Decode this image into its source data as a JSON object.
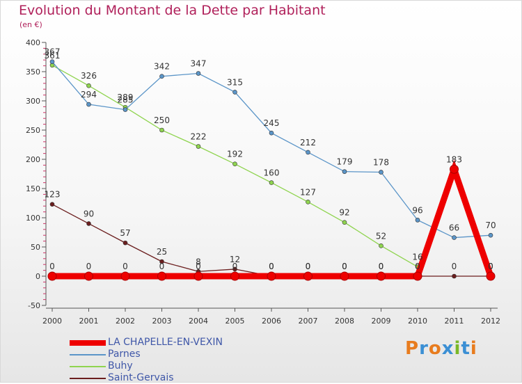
{
  "header": {
    "title": "Evolution du Montant de la Dette par Habitant",
    "subtitle": "(en €)"
  },
  "brand": {
    "text": "Proxiti",
    "colors": [
      "#e87c1e",
      "#3b8fd4",
      "#e87c1e",
      "#3b8fd4",
      "#7ab828",
      "#3b8fd4",
      "#e87c1e"
    ]
  },
  "chart_data": {
    "type": "line",
    "x": [
      2000,
      2001,
      2002,
      2003,
      2004,
      2005,
      2006,
      2007,
      2008,
      2009,
      2010,
      2011,
      2012
    ],
    "ylim": [
      -50,
      400
    ],
    "yticks": [
      -50,
      0,
      50,
      100,
      150,
      200,
      250,
      300,
      350,
      400
    ],
    "grid": false,
    "legend_position": "bottom-left",
    "series": [
      {
        "name": "LA CHAPELLE-EN-VEXIN",
        "color": "#ee0000",
        "values": [
          0,
          0,
          0,
          0,
          0,
          0,
          0,
          0,
          0,
          0,
          0,
          183,
          0
        ],
        "labels": [
          "0",
          "0",
          "0",
          "0",
          "0",
          "0",
          "0",
          "0",
          "0",
          "0",
          "",
          "183",
          "0"
        ]
      },
      {
        "name": "Parnes",
        "color": "#5b95c8",
        "values": [
          367,
          294,
          285,
          342,
          347,
          315,
          245,
          212,
          179,
          178,
          96,
          66,
          70
        ],
        "labels": [
          "367",
          "294",
          "285",
          "342",
          "347",
          "315",
          "245",
          "212",
          "179",
          "178",
          "96",
          "66",
          "70"
        ]
      },
      {
        "name": "Buhy",
        "color": "#8fd44f",
        "values": [
          361,
          326,
          289,
          250,
          222,
          192,
          160,
          127,
          92,
          52,
          16,
          null,
          null
        ],
        "labels": [
          "361",
          "326",
          "289",
          "250",
          "222",
          "192",
          "160",
          "127",
          "92",
          "52",
          "16",
          "",
          ""
        ]
      },
      {
        "name": "Saint-Gervais",
        "color": "#6b1e1e",
        "values": [
          123,
          90,
          57,
          25,
          8,
          12,
          0,
          0,
          0,
          0,
          0,
          0,
          0
        ],
        "labels": [
          "123",
          "90",
          "57",
          "25",
          "8",
          "12",
          "0",
          "0",
          "0",
          "0",
          "0",
          "0",
          "0"
        ]
      }
    ]
  }
}
